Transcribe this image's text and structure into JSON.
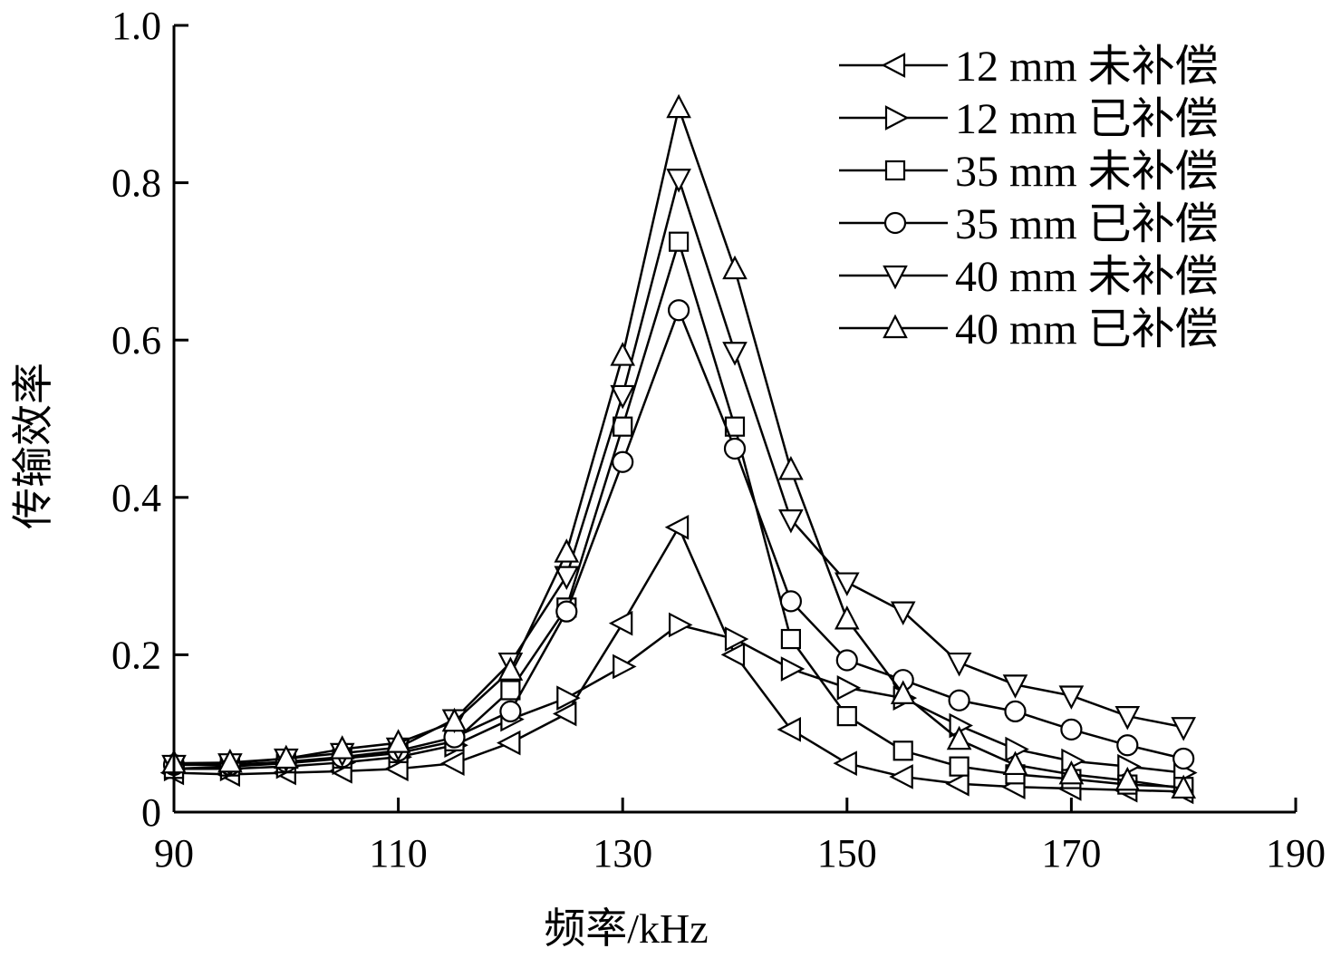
{
  "chart_data": {
    "type": "line",
    "title": "",
    "xlabel": "频率/kHz",
    "ylabel": "传输效率",
    "xlim": [
      90,
      190
    ],
    "ylim": [
      0,
      1.0
    ],
    "xticks": [
      90,
      110,
      130,
      150,
      170,
      190
    ],
    "xtick_labels": [
      "90",
      "110",
      "130",
      "150",
      "170",
      "190"
    ],
    "yticks": [
      0,
      0.2,
      0.4,
      0.6,
      0.8,
      1.0
    ],
    "ytick_labels": [
      "0",
      "0.2",
      "0.4",
      "0.6",
      "0.8",
      "1.0"
    ],
    "grid": false,
    "legend_position": "top-right",
    "x": [
      90,
      95,
      100,
      105,
      110,
      115,
      120,
      125,
      130,
      135,
      140,
      145,
      150,
      155,
      160,
      165,
      170,
      175,
      180
    ],
    "series": [
      {
        "name": "12 mm 未补偿",
        "marker": "triangle-left",
        "values": [
          0.05,
          0.048,
          0.05,
          0.052,
          0.055,
          0.062,
          0.088,
          0.125,
          0.24,
          0.362,
          0.2,
          0.105,
          0.062,
          0.045,
          0.036,
          0.032,
          0.03,
          0.028,
          0.026
        ]
      },
      {
        "name": "12 mm 已补偿",
        "marker": "triangle-right",
        "values": [
          0.055,
          0.055,
          0.058,
          0.063,
          0.07,
          0.085,
          0.118,
          0.145,
          0.185,
          0.238,
          0.22,
          0.182,
          0.158,
          0.145,
          0.11,
          0.08,
          0.065,
          0.058,
          0.05
        ]
      },
      {
        "name": "35 mm 未补偿",
        "marker": "square",
        "values": [
          0.055,
          0.058,
          0.062,
          0.068,
          0.075,
          0.09,
          0.155,
          0.26,
          0.49,
          0.725,
          0.49,
          0.22,
          0.122,
          0.078,
          0.058,
          0.048,
          0.042,
          0.035,
          0.032
        ]
      },
      {
        "name": "35 mm 已补偿",
        "marker": "circle",
        "values": [
          0.06,
          0.06,
          0.064,
          0.07,
          0.078,
          0.095,
          0.128,
          0.255,
          0.445,
          0.638,
          0.462,
          0.268,
          0.193,
          0.168,
          0.142,
          0.128,
          0.105,
          0.085,
          0.068
        ]
      },
      {
        "name": "40 mm 未补偿",
        "marker": "triangle-down",
        "values": [
          0.06,
          0.062,
          0.068,
          0.075,
          0.082,
          0.118,
          0.19,
          0.3,
          0.53,
          0.805,
          0.585,
          0.372,
          0.292,
          0.255,
          0.19,
          0.162,
          0.148,
          0.122,
          0.108
        ]
      },
      {
        "name": "40 mm 已补偿",
        "marker": "triangle-up",
        "values": [
          0.062,
          0.063,
          0.068,
          0.08,
          0.088,
          0.115,
          0.18,
          0.33,
          0.58,
          0.895,
          0.69,
          0.435,
          0.245,
          0.15,
          0.092,
          0.06,
          0.048,
          0.04,
          0.03
        ]
      }
    ]
  }
}
